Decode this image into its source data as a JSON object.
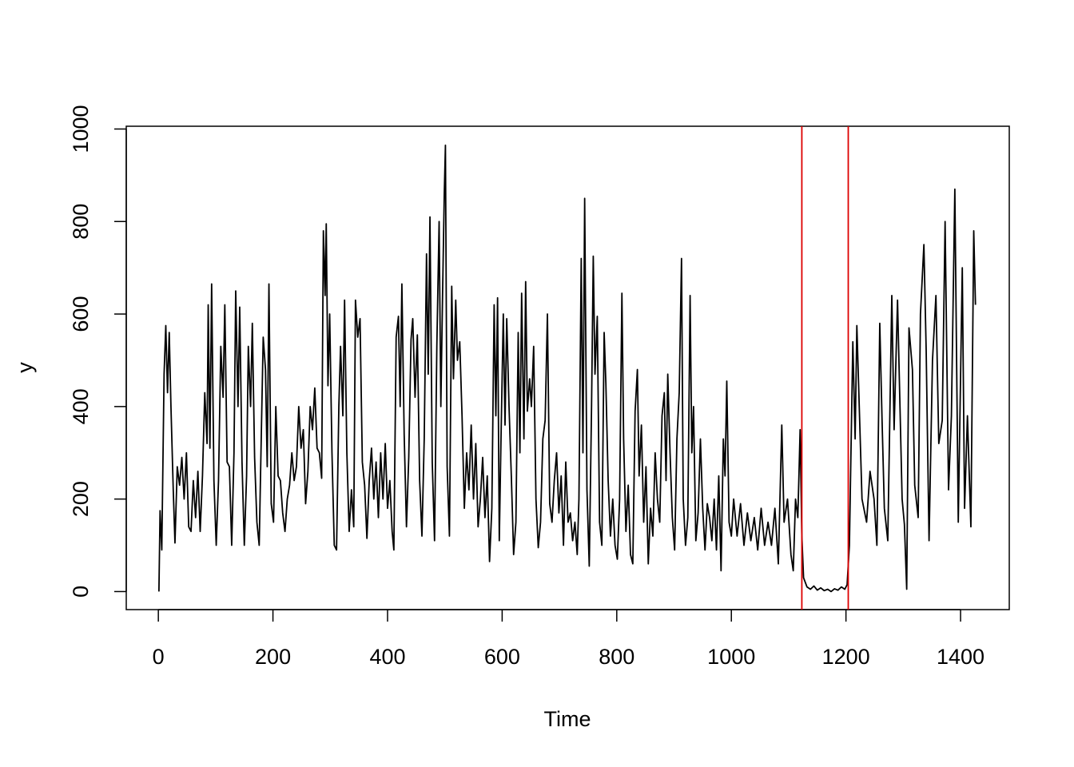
{
  "chart_data": {
    "type": "line",
    "xlabel": "Time",
    "ylabel": "y",
    "x": [
      1,
      3,
      6,
      10,
      13,
      16,
      19,
      22,
      26,
      29,
      33,
      37,
      41,
      45,
      49,
      53,
      57,
      61,
      65,
      69,
      73,
      77,
      81,
      85,
      87,
      90,
      93,
      97,
      101,
      105,
      109,
      113,
      116,
      120,
      124,
      128,
      132,
      135,
      139,
      142,
      146,
      150,
      154,
      157,
      161,
      164,
      168,
      172,
      176,
      180,
      183,
      187,
      190,
      193,
      197,
      201,
      205,
      209,
      213,
      217,
      221,
      225,
      229,
      233,
      237,
      241,
      245,
      249,
      253,
      257,
      261,
      265,
      269,
      273,
      277,
      281,
      285,
      288,
      291,
      293,
      296,
      299,
      303,
      307,
      311,
      315,
      318,
      322,
      325,
      329,
      333,
      337,
      341,
      344,
      348,
      352,
      356,
      360,
      364,
      368,
      372,
      376,
      380,
      384,
      388,
      392,
      396,
      400,
      404,
      408,
      411,
      415,
      419,
      422,
      425,
      429,
      433,
      437,
      441,
      444,
      448,
      452,
      456,
      460,
      464,
      468,
      471,
      474,
      478,
      482,
      486,
      490,
      493,
      496,
      499,
      501,
      504,
      508,
      512,
      515,
      519,
      522,
      526,
      530,
      534,
      538,
      542,
      546,
      550,
      554,
      558,
      562,
      566,
      570,
      574,
      578,
      582,
      586,
      589,
      592,
      595,
      598,
      602,
      605,
      608,
      612,
      616,
      620,
      624,
      628,
      631,
      634,
      638,
      641,
      644,
      648,
      651,
      655,
      659,
      663,
      667,
      671,
      675,
      679,
      683,
      687,
      691,
      695,
      699,
      703,
      707,
      711,
      715,
      719,
      723,
      727,
      731,
      734,
      738,
      741,
      744,
      748,
      752,
      756,
      759,
      762,
      766,
      770,
      774,
      778,
      781,
      785,
      789,
      793,
      797,
      801,
      805,
      809,
      812,
      816,
      820,
      824,
      828,
      832,
      836,
      839,
      843,
      847,
      851,
      855,
      859,
      863,
      867,
      871,
      875,
      879,
      883,
      886,
      889,
      893,
      897,
      901,
      905,
      909,
      913,
      916,
      920,
      924,
      928,
      931,
      934,
      938,
      942,
      946,
      950,
      954,
      958,
      962,
      966,
      970,
      974,
      978,
      982,
      986,
      989,
      992,
      996,
      1000,
      1004,
      1010,
      1016,
      1022,
      1028,
      1034,
      1040,
      1046,
      1052,
      1058,
      1064,
      1070,
      1076,
      1082,
      1088,
      1092,
      1098,
      1104,
      1108,
      1112,
      1116,
      1120,
      1123,
      1126,
      1132,
      1138,
      1144,
      1150,
      1156,
      1162,
      1168,
      1174,
      1180,
      1186,
      1192,
      1198,
      1202,
      1206,
      1212,
      1216,
      1219,
      1228,
      1236,
      1242,
      1249,
      1254,
      1259,
      1263,
      1267,
      1273,
      1280,
      1284,
      1290,
      1298,
      1302,
      1306,
      1310,
      1316,
      1320,
      1326,
      1330,
      1336,
      1340,
      1345,
      1351,
      1357,
      1362,
      1368,
      1373,
      1379,
      1384,
      1390,
      1396,
      1403,
      1407,
      1412,
      1418,
      1423,
      1426
    ],
    "series": [
      {
        "color": "#000000",
        "values": [
          0,
          175,
          90,
          470,
          575,
          430,
          560,
          400,
          220,
          105,
          270,
          230,
          290,
          200,
          300,
          140,
          130,
          240,
          160,
          260,
          130,
          250,
          430,
          320,
          620,
          310,
          665,
          240,
          100,
          240,
          530,
          420,
          620,
          280,
          270,
          100,
          300,
          650,
          400,
          615,
          280,
          100,
          250,
          530,
          400,
          580,
          290,
          150,
          100,
          360,
          550,
          480,
          270,
          665,
          190,
          150,
          400,
          250,
          240,
          170,
          130,
          200,
          230,
          300,
          240,
          270,
          400,
          310,
          350,
          190,
          260,
          400,
          350,
          440,
          310,
          300,
          245,
          780,
          640,
          795,
          445,
          600,
          300,
          100,
          90,
          400,
          530,
          380,
          630,
          300,
          130,
          220,
          140,
          630,
          550,
          590,
          280,
          230,
          115,
          240,
          310,
          200,
          280,
          160,
          300,
          200,
          320,
          180,
          240,
          130,
          90,
          550,
          595,
          400,
          665,
          340,
          140,
          290,
          545,
          590,
          420,
          555,
          240,
          120,
          330,
          730,
          470,
          810,
          280,
          110,
          530,
          800,
          400,
          640,
          860,
          965,
          270,
          120,
          660,
          460,
          630,
          500,
          540,
          380,
          180,
          300,
          220,
          360,
          200,
          320,
          140,
          200,
          290,
          160,
          250,
          65,
          180,
          620,
          380,
          635,
          110,
          330,
          600,
          360,
          590,
          400,
          250,
          80,
          150,
          560,
          300,
          645,
          330,
          670,
          390,
          460,
          400,
          530,
          200,
          95,
          150,
          330,
          370,
          600,
          190,
          150,
          240,
          300,
          170,
          250,
          100,
          280,
          150,
          170,
          110,
          150,
          80,
          200,
          720,
          300,
          850,
          220,
          55,
          400,
          725,
          470,
          595,
          150,
          100,
          560,
          450,
          240,
          120,
          200,
          100,
          70,
          200,
          645,
          330,
          130,
          230,
          80,
          60,
          390,
          480,
          250,
          360,
          150,
          270,
          60,
          180,
          120,
          300,
          200,
          150,
          380,
          430,
          240,
          470,
          300,
          160,
          90,
          330,
          430,
          720,
          200,
          100,
          160,
          640,
          300,
          400,
          110,
          170,
          330,
          180,
          90,
          190,
          160,
          110,
          200,
          90,
          250,
          45,
          330,
          250,
          455,
          150,
          120,
          200,
          120,
          190,
          100,
          170,
          110,
          160,
          90,
          180,
          100,
          150,
          100,
          180,
          60,
          360,
          150,
          200,
          80,
          45,
          200,
          160,
          350,
          120,
          30,
          10,
          5,
          12,
          3,
          8,
          2,
          5,
          0,
          6,
          3,
          10,
          5,
          15,
          100,
          540,
          330,
          575,
          200,
          150,
          260,
          200,
          100,
          580,
          370,
          180,
          110,
          640,
          350,
          630,
          200,
          145,
          5,
          570,
          480,
          230,
          160,
          600,
          750,
          520,
          110,
          500,
          640,
          320,
          370,
          800,
          220,
          380,
          870,
          150,
          700,
          180,
          380,
          140,
          780,
          620
        ]
      }
    ],
    "vlines": [
      1123,
      1204
    ],
    "vline_color": "#dd0000",
    "xlim": [
      -56,
      1485
    ],
    "ylim": [
      -39,
      1006
    ],
    "xticks": [
      0,
      200,
      400,
      600,
      800,
      1000,
      1200,
      1400
    ],
    "yticks": [
      0,
      200,
      400,
      600,
      800,
      1000
    ]
  }
}
